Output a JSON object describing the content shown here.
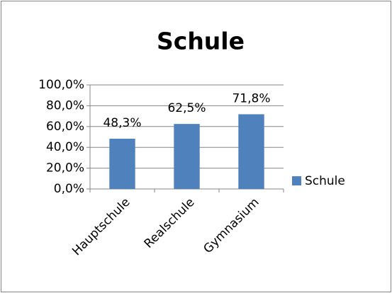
{
  "chart_data": {
    "type": "bar",
    "title": "Schule",
    "categories": [
      "Hauptschule",
      "Realschule",
      "Gymnasium"
    ],
    "series": [
      {
        "name": "Schule",
        "color": "#4f81bd",
        "values": [
          48.3,
          62.5,
          71.8
        ],
        "value_labels": [
          "48,3%",
          "62,5%",
          "71,8%"
        ]
      }
    ],
    "ylim": [
      0,
      100
    ],
    "yticks": [
      {
        "value": 0,
        "label": "0,0%"
      },
      {
        "value": 20,
        "label": "20,0%"
      },
      {
        "value": 40,
        "label": "40,0%"
      },
      {
        "value": 60,
        "label": "60,0%"
      },
      {
        "value": 80,
        "label": "80,0%"
      },
      {
        "value": 100,
        "label": "100,0%"
      }
    ],
    "grid": true,
    "legend": "right"
  }
}
